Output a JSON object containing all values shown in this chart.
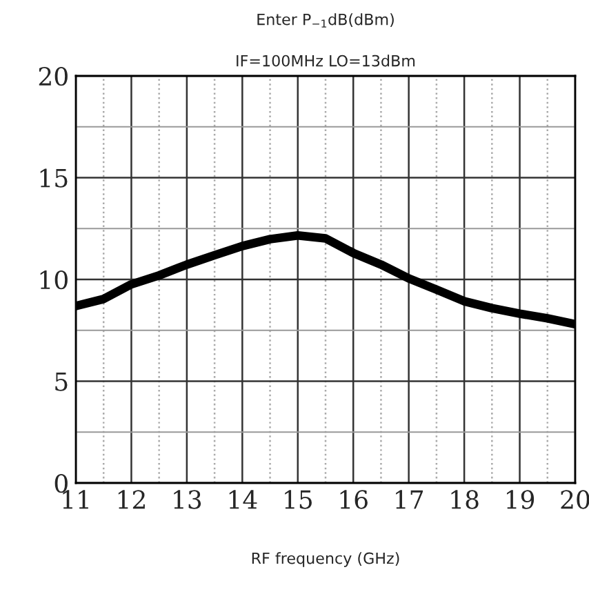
{
  "chart_data": {
    "type": "line",
    "title": "Enter P$_{−1}$dB(dBm)",
    "subtitle": "IF=100MHz LO=13dBm",
    "xlabel": "RF frequency (GHz)",
    "x": [
      11,
      11.5,
      12,
      12.5,
      13,
      13.5,
      14,
      14.5,
      15,
      15.5,
      16,
      16.5,
      17,
      17.5,
      18,
      18.5,
      19,
      19.5,
      20
    ],
    "series": [
      {
        "color": "#000000",
        "values": [
          8.7,
          9.04,
          9.76,
          10.2,
          10.73,
          11.19,
          11.64,
          11.98,
          12.16,
          12.02,
          11.3,
          10.73,
          10.05,
          9.5,
          8.93,
          8.59,
          8.32,
          8.09,
          7.8
        ]
      }
    ],
    "xlim": [
      11,
      20
    ],
    "ylim": [
      0,
      20
    ],
    "xticks": [
      11,
      12,
      13,
      14,
      15,
      16,
      17,
      18,
      19,
      20,
      {
        "value": 11.5,
        "label": null
      },
      {
        "value": 12.5,
        "label": null
      },
      {
        "value": 13.5,
        "label": null
      },
      {
        "value": 14.5,
        "label": null
      },
      {
        "value": 15.5,
        "label": null
      },
      {
        "value": 16.5,
        "label": null
      },
      {
        "value": 17.5,
        "label": null
      },
      {
        "value": 18.5,
        "label": null
      },
      {
        "value": 19.5,
        "label": null
      }
    ],
    "yticks": [
      0,
      5,
      10,
      15,
      20,
      {
        "value": 2.5,
        "label": null
      },
      {
        "value": 7.5,
        "label": null
      },
      {
        "value": 12.5,
        "label": null
      },
      {
        "value": 17.5,
        "label": null
      }
    ],
    "grid": true,
    "marker": "none",
    "line_style": "solid",
    "legend": false
  }
}
